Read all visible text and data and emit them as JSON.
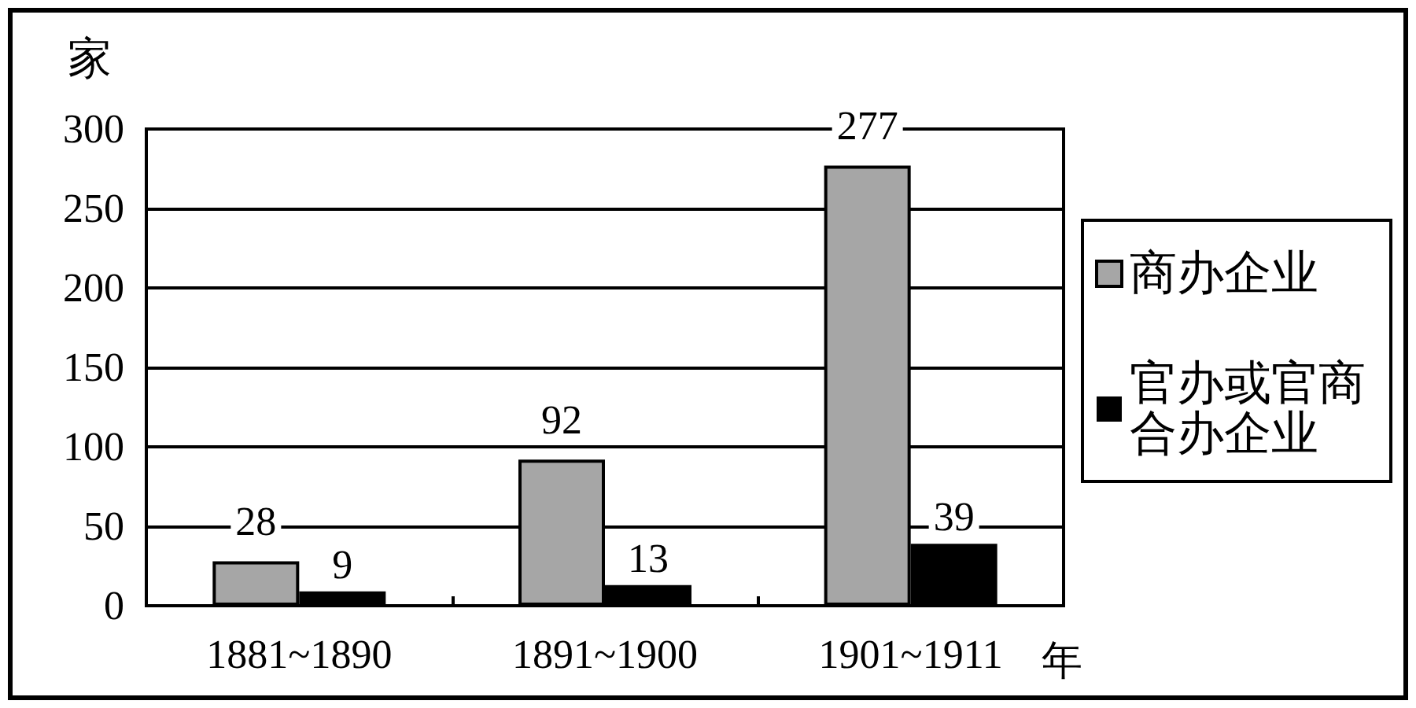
{
  "chart_data": {
    "type": "bar",
    "categories": [
      "1881~1890",
      "1891~1900",
      "1901~1911"
    ],
    "xlabel": "年",
    "ylabel": "家",
    "series": [
      {
        "name": "商办企业",
        "color": "#a6a6a6",
        "values": [
          28,
          92,
          277
        ]
      },
      {
        "name": "官办或官商合办企业",
        "color": "#000000",
        "values": [
          9,
          13,
          39
        ]
      }
    ],
    "ylim": [
      0,
      300
    ],
    "yticks": [
      0,
      50,
      100,
      150,
      200,
      250,
      300
    ],
    "grid": "y",
    "legend": "right",
    "data_labels": true
  }
}
